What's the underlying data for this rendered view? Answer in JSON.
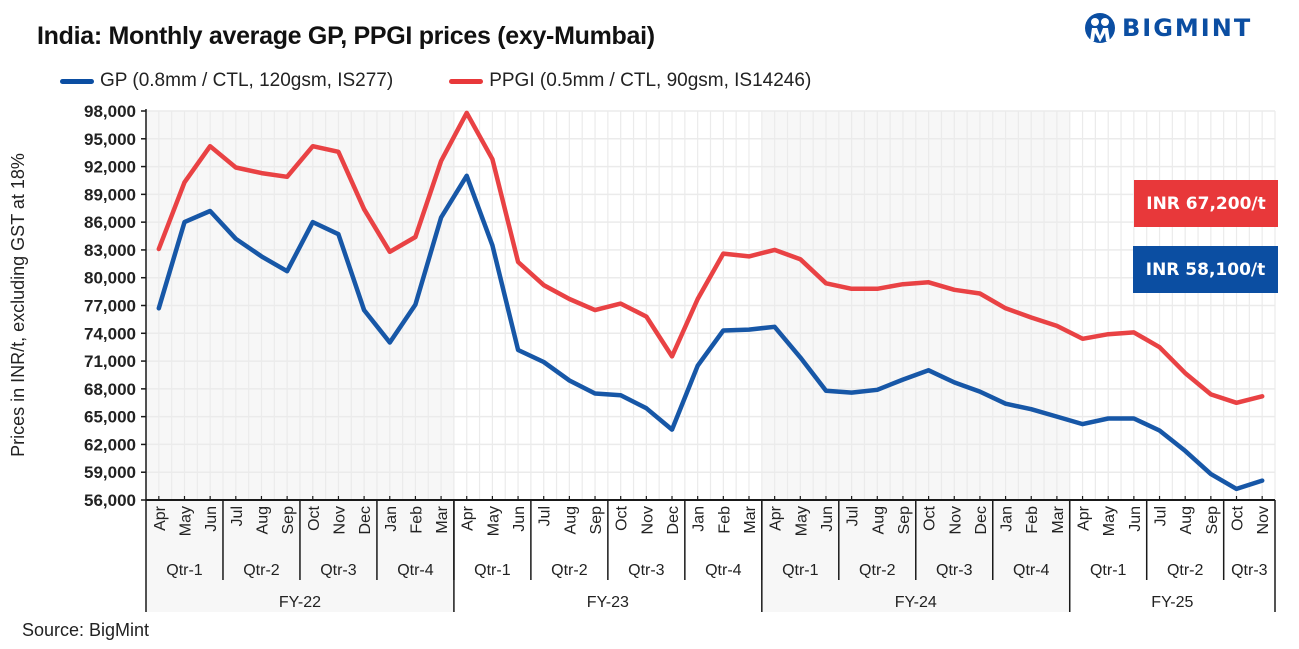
{
  "header": {
    "title": "India: Monthly average GP, PPGI prices (exy-Mumbai)",
    "logo_text": "BIGMINT"
  },
  "footer": {
    "source": "Source: BigMint"
  },
  "colors": {
    "gp": "#0b4ea2",
    "ppgi": "#e8383a",
    "logo": "#0b4ea2",
    "band": "#f7f7f7",
    "grid": "#ebebeb"
  },
  "callouts": {
    "ppgi_latest": "INR 67,200/t",
    "gp_latest": "INR 58,100/t"
  },
  "chart_data": {
    "type": "line",
    "title": "India: Monthly average GP, PPGI prices (exy-Mumbai)",
    "xlabel": "",
    "ylabel": "Prices in INR/t, excluding GST at 18%",
    "ylim": [
      56000,
      98000
    ],
    "yticks": [
      98000,
      95000,
      92000,
      89000,
      86000,
      83000,
      80000,
      77000,
      74000,
      71000,
      68000,
      65000,
      62000,
      59000,
      56000
    ],
    "ytick_labels": [
      "98,000",
      "95,000",
      "92,000",
      "89,000",
      "86,000",
      "83,000",
      "80,000",
      "77,000",
      "74,000",
      "71,000",
      "68,000",
      "65,000",
      "62,000",
      "59,000",
      "56,000"
    ],
    "grid": true,
    "legend_position": "top-left",
    "x": [
      "Apr",
      "May",
      "Jun",
      "Jul",
      "Aug",
      "Sep",
      "Oct",
      "Nov",
      "Dec",
      "Jan",
      "Feb",
      "Mar",
      "Apr",
      "May",
      "Jun",
      "Jul",
      "Aug",
      "Sep",
      "Oct",
      "Nov",
      "Dec",
      "Jan",
      "Feb",
      "Mar",
      "Apr",
      "May",
      "Jun",
      "Jul",
      "Aug",
      "Sep",
      "Oct",
      "Nov",
      "Dec",
      "Jan",
      "Feb",
      "Mar",
      "Apr",
      "May",
      "Jun",
      "Jul",
      "Aug",
      "Sep",
      "Oct",
      "Nov"
    ],
    "quarters": [
      {
        "label": "Qtr-1",
        "months": 3
      },
      {
        "label": "Qtr-2",
        "months": 3
      },
      {
        "label": "Qtr-3",
        "months": 3
      },
      {
        "label": "Qtr-4",
        "months": 3
      },
      {
        "label": "Qtr-1",
        "months": 3
      },
      {
        "label": "Qtr-2",
        "months": 3
      },
      {
        "label": "Qtr-3",
        "months": 3
      },
      {
        "label": "Qtr-4",
        "months": 3
      },
      {
        "label": "Qtr-1",
        "months": 3
      },
      {
        "label": "Qtr-2",
        "months": 3
      },
      {
        "label": "Qtr-3",
        "months": 3
      },
      {
        "label": "Qtr-4",
        "months": 3
      },
      {
        "label": "Qtr-1",
        "months": 3
      },
      {
        "label": "Qtr-2",
        "months": 3
      },
      {
        "label": "Qtr-3",
        "months": 2
      }
    ],
    "fiscal_years": [
      {
        "label": "FY-22",
        "months": 12,
        "shaded": true
      },
      {
        "label": "FY-23",
        "months": 12,
        "shaded": false
      },
      {
        "label": "FY-24",
        "months": 12,
        "shaded": true
      },
      {
        "label": "FY-25",
        "months": 8,
        "shaded": false
      }
    ],
    "series": [
      {
        "name": "GP (0.8mm / CTL, 120gsm, IS277)",
        "key": "gp",
        "values": [
          76700,
          86000,
          87200,
          84200,
          82300,
          80700,
          86000,
          84700,
          76500,
          73000,
          77100,
          86500,
          91000,
          83500,
          72200,
          70900,
          68900,
          67500,
          67300,
          65900,
          63600,
          70500,
          74300,
          74400,
          74700,
          71400,
          67800,
          67600,
          67900,
          69000,
          70000,
          68700,
          67700,
          66400,
          65800,
          65000,
          64200,
          64800,
          64800,
          63500,
          61300,
          58800,
          57200,
          58100
        ]
      },
      {
        "name": "PPGI (0.5mm / CTL, 90gsm, IS14246)",
        "key": "ppgi",
        "values": [
          83100,
          90300,
          94200,
          91900,
          91300,
          90900,
          94200,
          93600,
          87400,
          82800,
          84400,
          92600,
          97800,
          92800,
          81700,
          79200,
          77700,
          76500,
          77200,
          75800,
          71500,
          77700,
          82600,
          82300,
          83000,
          82000,
          79400,
          78800,
          78800,
          79300,
          79500,
          78700,
          78300,
          76700,
          75700,
          74800,
          73400,
          73900,
          74100,
          72500,
          69700,
          67400,
          66500,
          67200
        ]
      }
    ]
  }
}
